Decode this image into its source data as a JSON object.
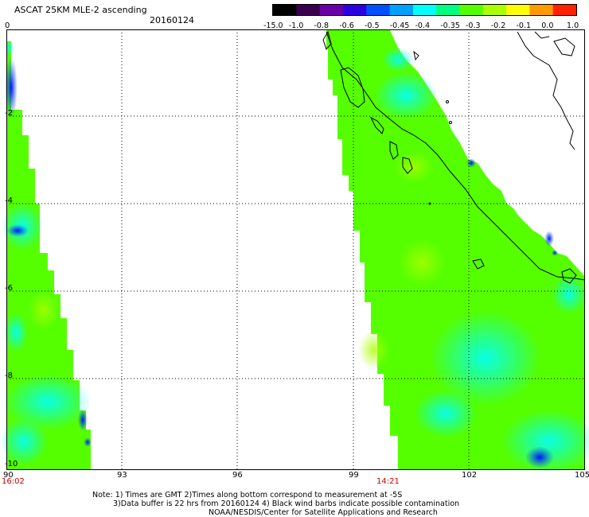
{
  "header": {
    "title": "ASCAT 25KM MLE-2 ascending",
    "date": "20160124"
  },
  "colorbar": {
    "labels": [
      "-15.0",
      "-1.0",
      "-0.8",
      "-0.6",
      "-0.5",
      "-0.45",
      "-0.4",
      "-0.35",
      "-0.3",
      "-0.2",
      "-0.1",
      "0.0",
      "1.0"
    ],
    "colors": [
      "#000000",
      "#3a0050",
      "#6a00a8",
      "#2b00e0",
      "#0050ff",
      "#00a0ff",
      "#00ffff",
      "#00ff80",
      "#55ff00",
      "#aaff00",
      "#ffff00",
      "#ff9900",
      "#ff2200"
    ]
  },
  "axes": {
    "y_ticks": [
      "0",
      "-2",
      "-4",
      "-6",
      "-8",
      "-10"
    ],
    "x_ticks": [
      "90",
      "93",
      "96",
      "99",
      "102",
      "105"
    ]
  },
  "times": {
    "left": "16:02",
    "mid": "14:21"
  },
  "notes": {
    "line1": "Note: 1) Times are GMT 2)Times along bottom correspond to measurement at -5S",
    "line2": "3)Data buffer is 22 hrs from 20160124 4) Black wind barbs indicate possible contamination",
    "line3": "NOAA/NESDIS/Center for Satellite Applications and Research"
  }
}
